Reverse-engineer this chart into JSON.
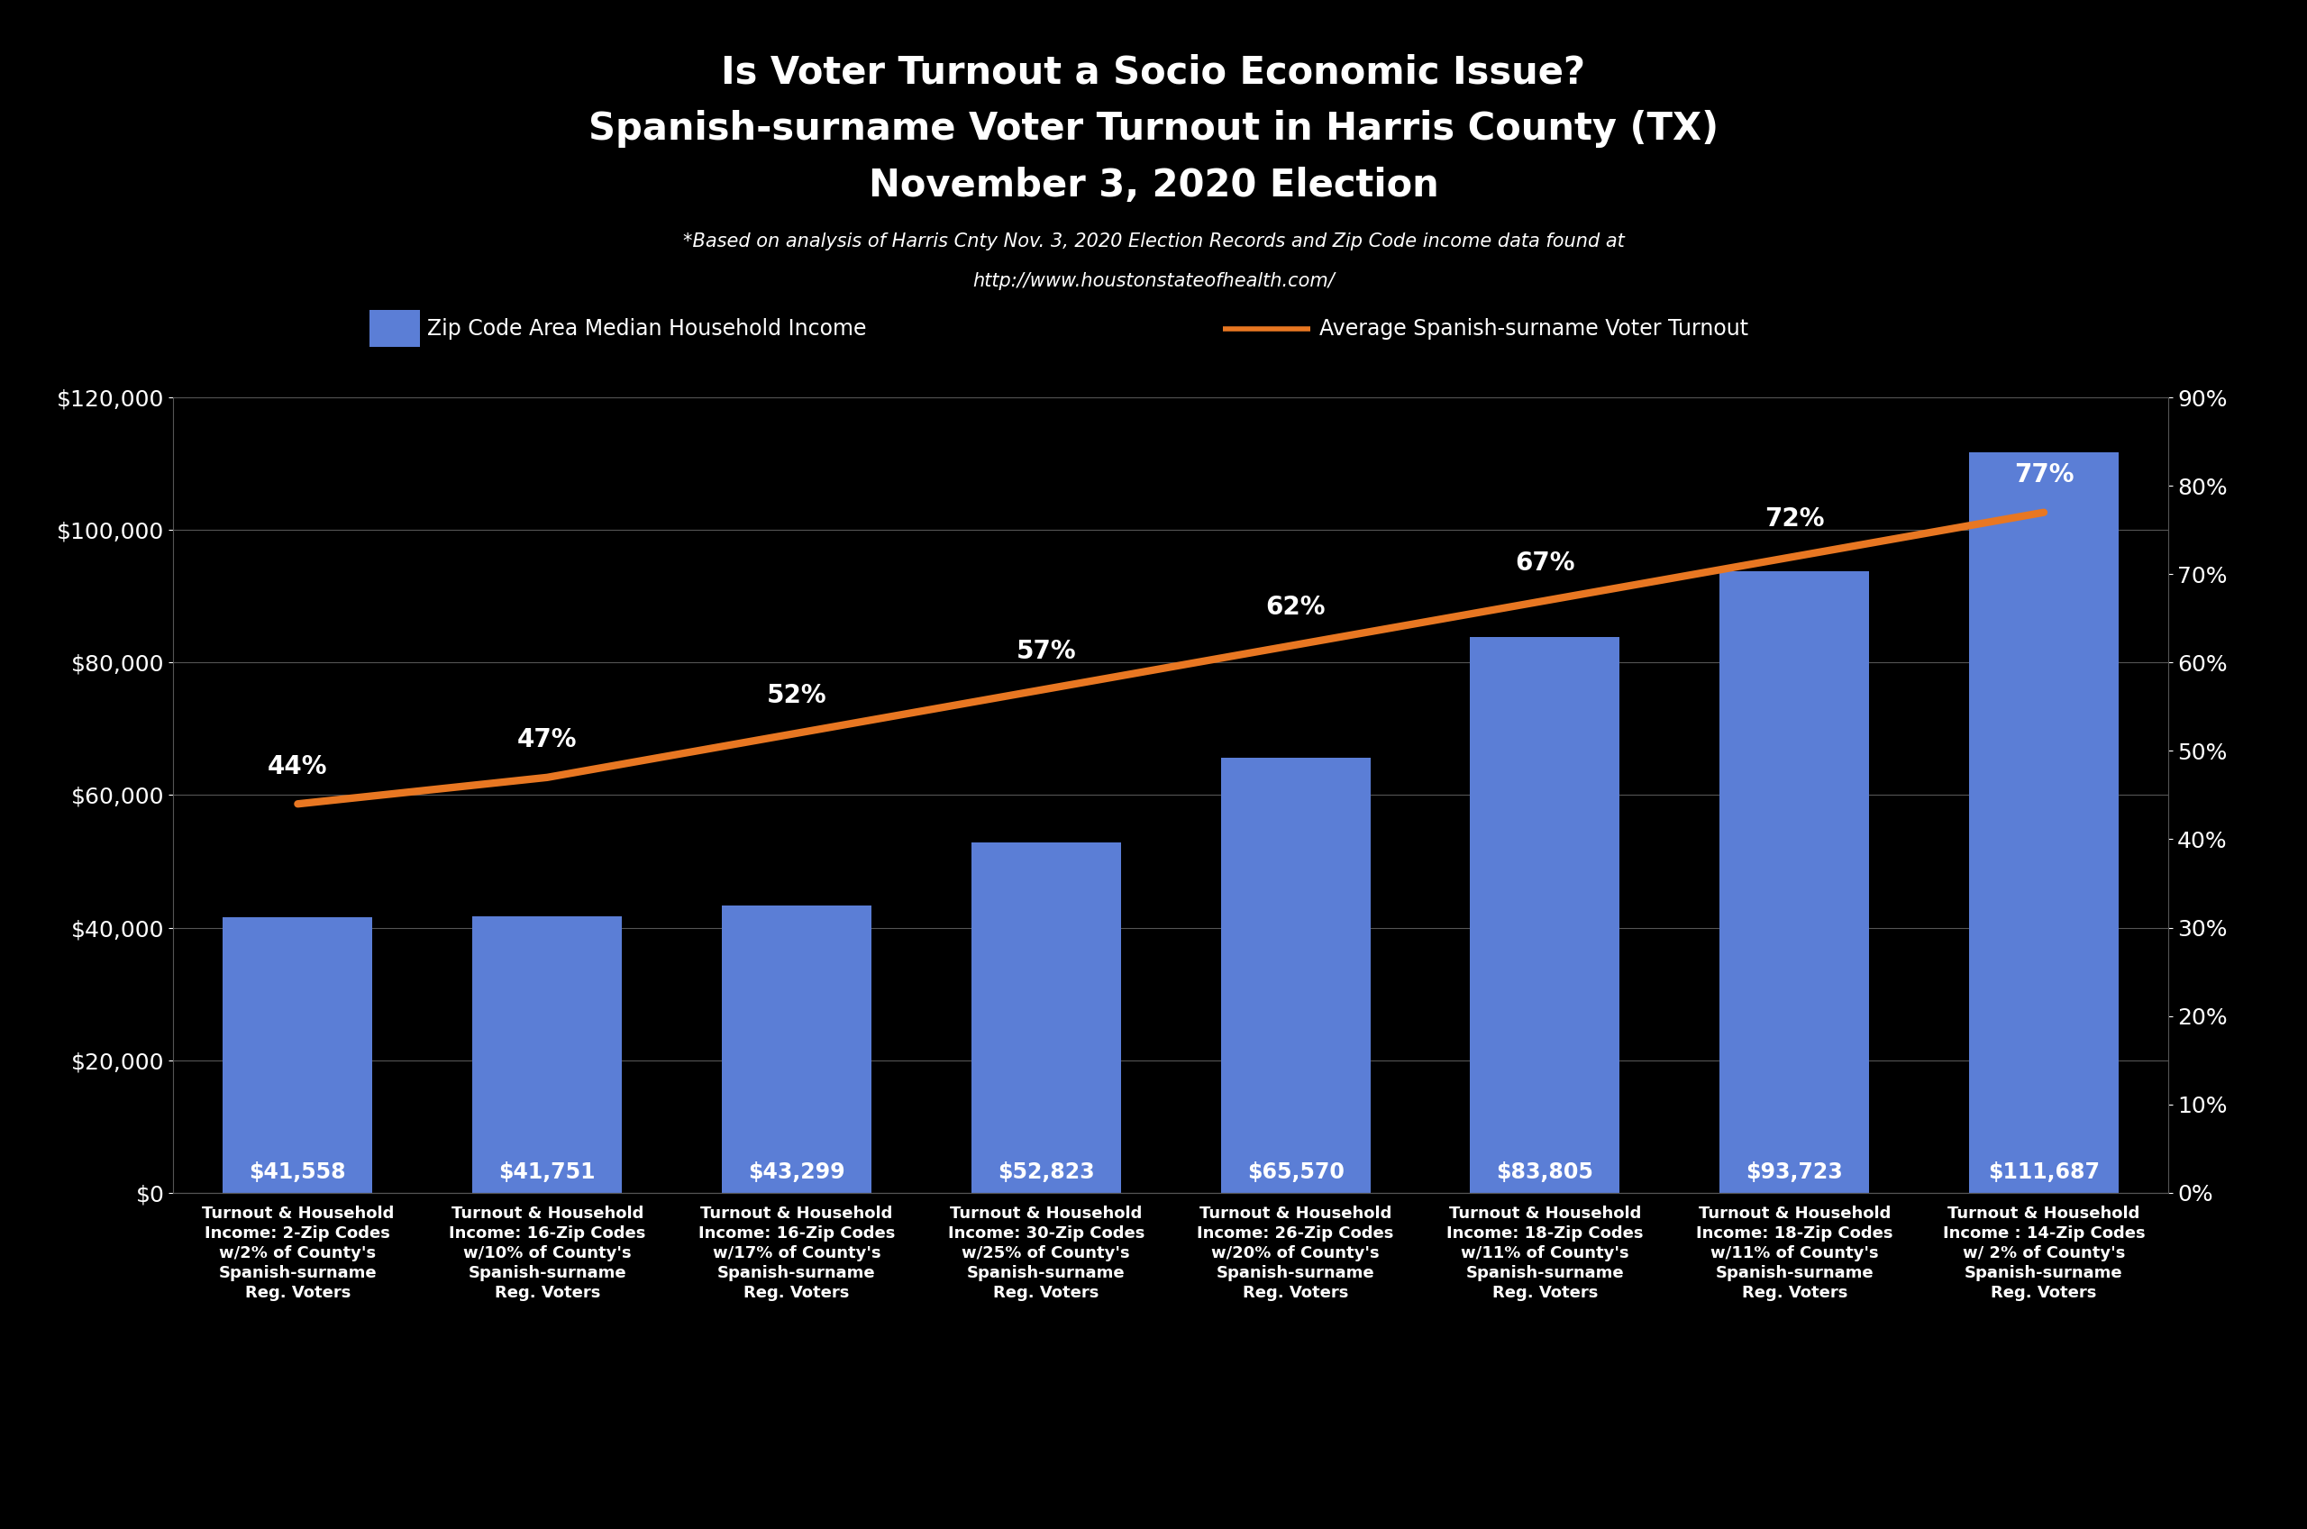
{
  "title_line1": "Is Voter Turnout a Socio Economic Issue?",
  "title_line2": "Spanish-surname Voter Turnout in Harris County (TX)",
  "title_line3": "November 3, 2020 Election",
  "subtitle_line1": "*Based on analysis of Harris Cnty Nov. 3, 2020 Election Records and Zip Code income data found at",
  "subtitle_line2": "http://www.houstonstateofhealth.com/",
  "background_color": "#000000",
  "text_color": "#ffffff",
  "bar_color": "#5b7ed6",
  "line_color": "#e87722",
  "categories": [
    "Turnout & Household\nIncome: 2-Zip Codes\nw/2% of County's\nSpanish-surname\nReg. Voters",
    "Turnout & Household\nIncome: 16-Zip Codes\nw/10% of County's\nSpanish-surname\nReg. Voters",
    "Turnout & Household\nIncome: 16-Zip Codes\nw/17% of County's\nSpanish-surname\nReg. Voters",
    "Turnout & Household\nIncome: 30-Zip Codes\nw/25% of County's\nSpanish-surname\nReg. Voters",
    "Turnout & Household\nIncome: 26-Zip Codes\nw/20% of County's\nSpanish-surname\nReg. Voters",
    "Turnout & Household\nIncome: 18-Zip Codes\nw/11% of County's\nSpanish-surname\nReg. Voters",
    "Turnout & Household\nIncome: 18-Zip Codes\nw/11% of County's\nSpanish-surname\nReg. Voters",
    "Turnout & Household\nIncome : 14-Zip Codes\nw/ 2% of County's\nSpanish-surname\nReg. Voters"
  ],
  "income_values": [
    41558,
    41751,
    43299,
    52823,
    65570,
    83805,
    93723,
    111687
  ],
  "income_labels": [
    "$41,558",
    "$41,751",
    "$43,299",
    "$52,823",
    "$65,570",
    "$83,805",
    "$93,723",
    "$111,687"
  ],
  "turnout_values": [
    0.44,
    0.47,
    0.52,
    0.57,
    0.62,
    0.67,
    0.72,
    0.77
  ],
  "turnout_labels": [
    "44%",
    "47%",
    "52%",
    "57%",
    "62%",
    "67%",
    "72%",
    "77%"
  ],
  "ylim_left": [
    0,
    120000
  ],
  "ylim_right": [
    0,
    0.9
  ],
  "yticks_left": [
    0,
    20000,
    40000,
    60000,
    80000,
    100000,
    120000
  ],
  "yticks_right": [
    0.0,
    0.1,
    0.2,
    0.3,
    0.4,
    0.5,
    0.6,
    0.7,
    0.8,
    0.9
  ],
  "legend_bar_label": "Zip Code Area Median Household Income",
  "legend_line_label": "Average Spanish-surname Voter Turnout",
  "grid_color": "#555555"
}
